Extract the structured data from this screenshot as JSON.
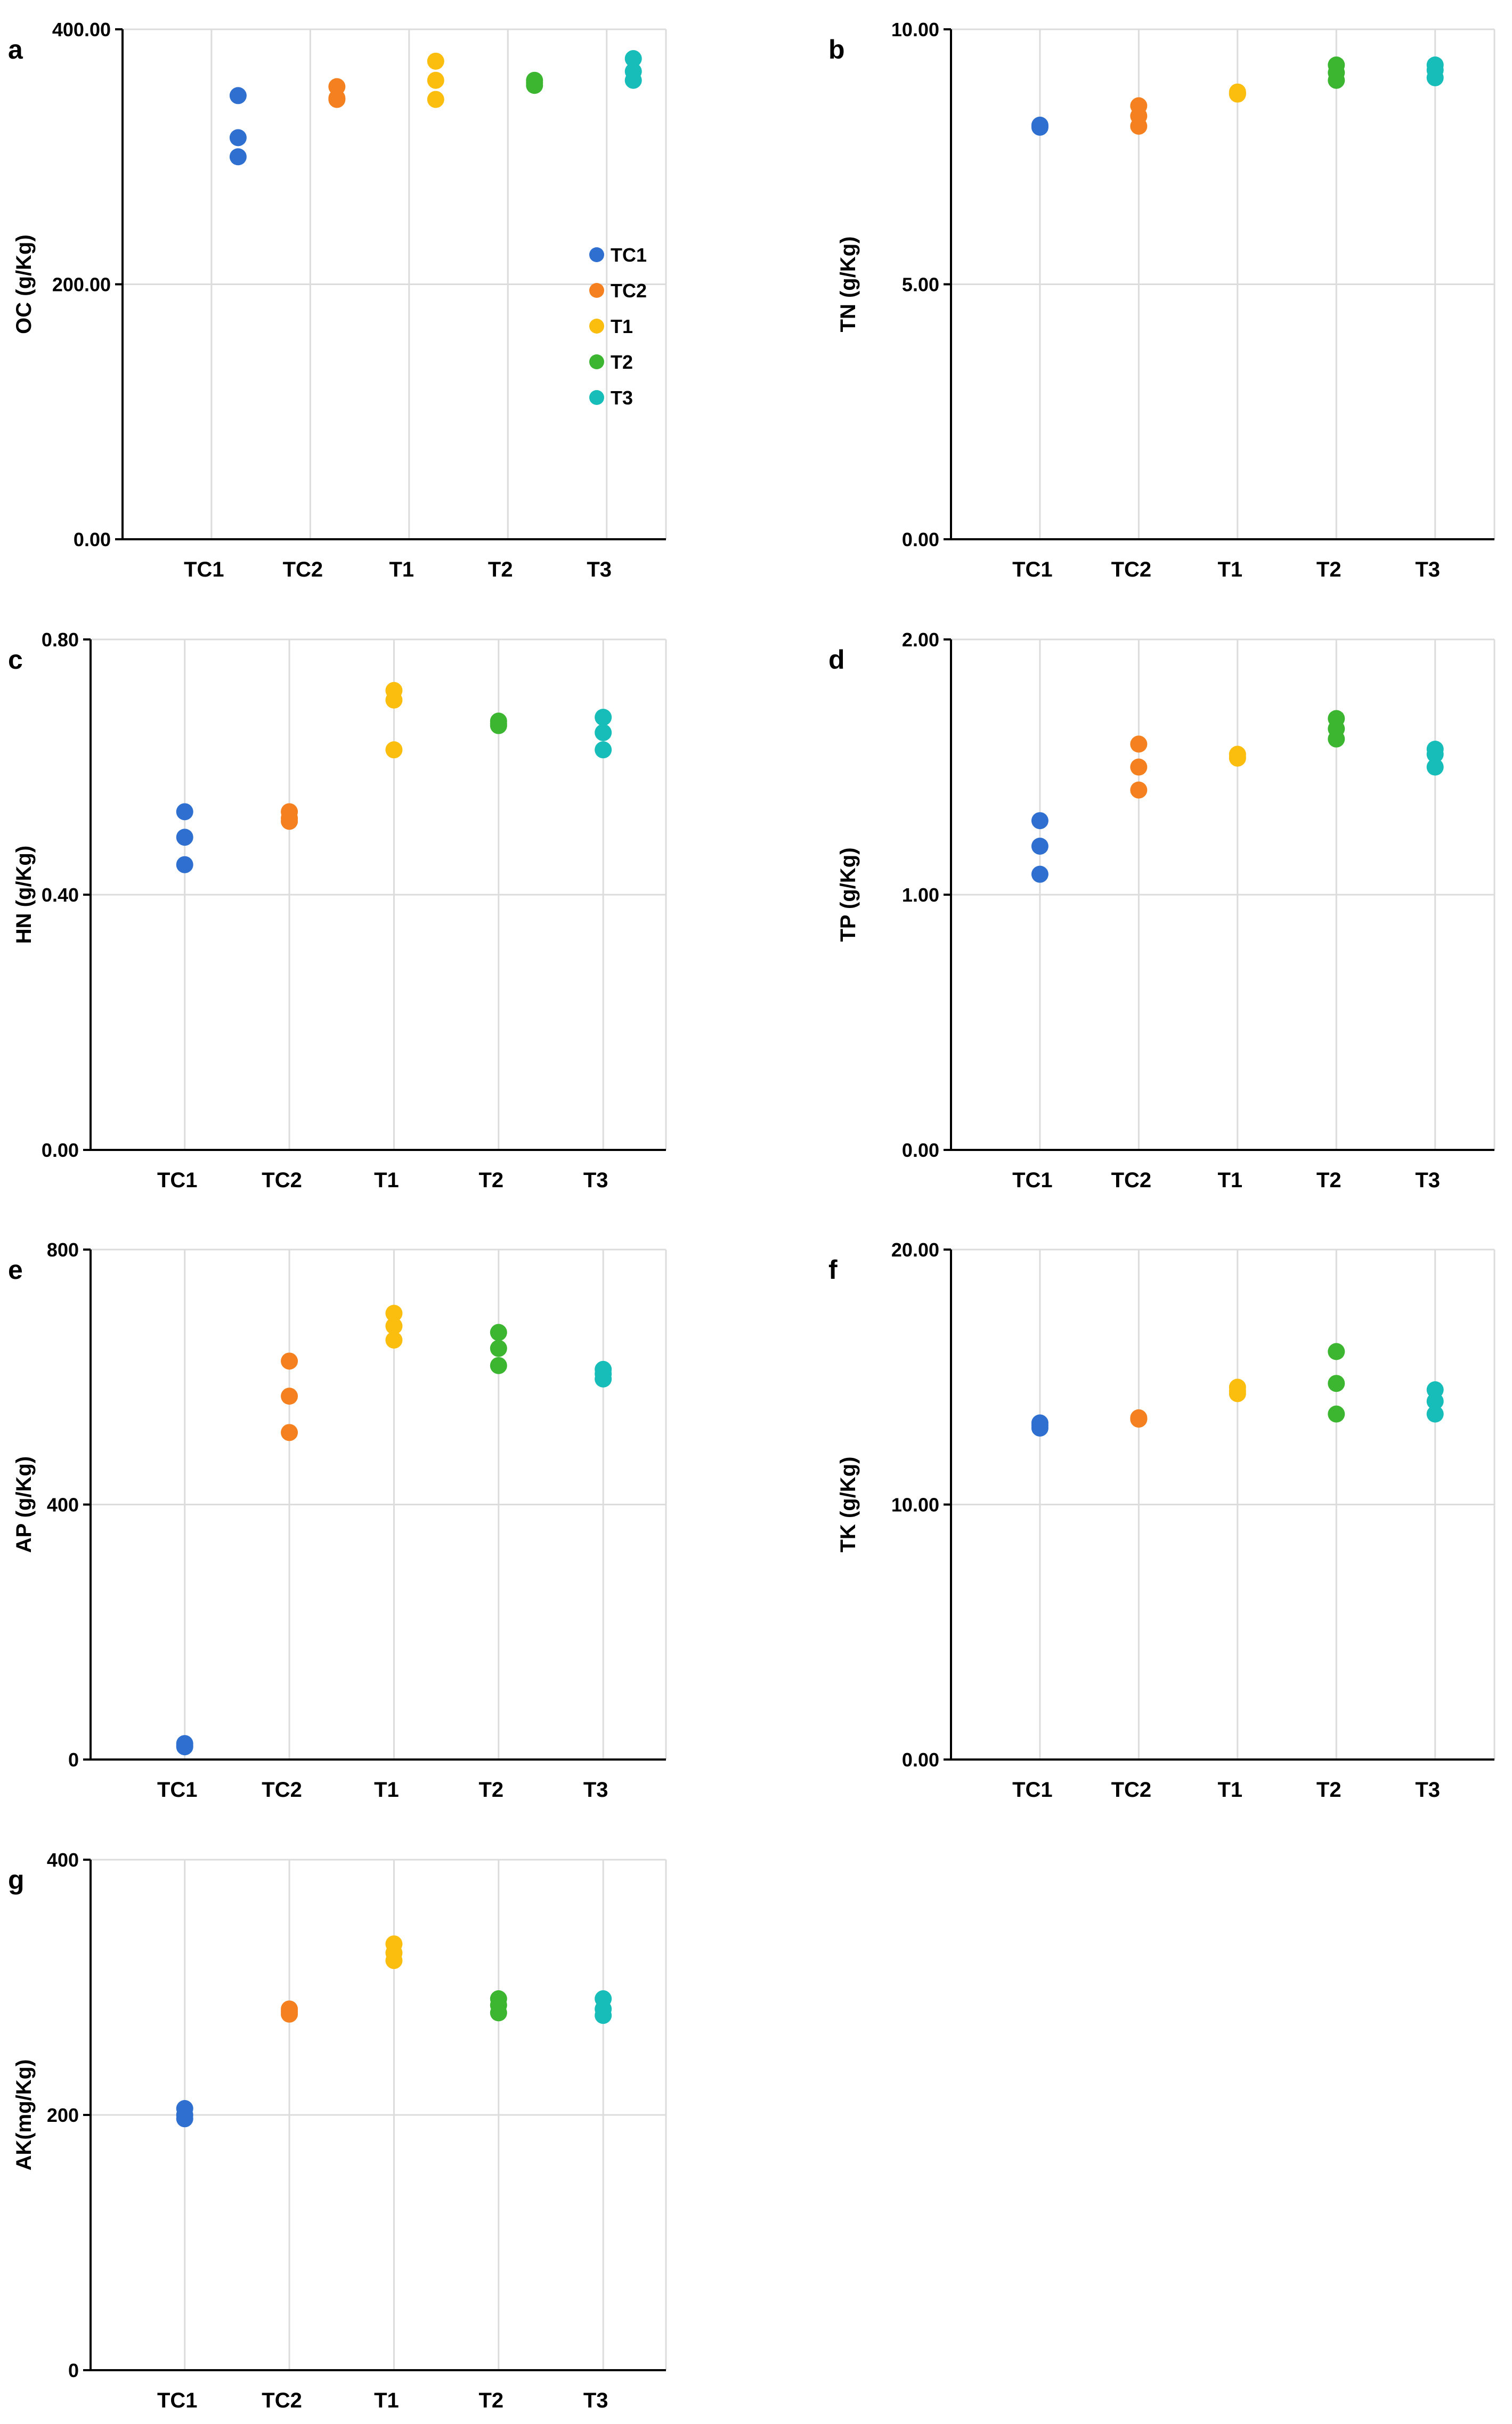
{
  "categories": [
    "TC1",
    "TC2",
    "T1",
    "T2",
    "T3"
  ],
  "colors": {
    "TC1": "#2e6fcf",
    "TC2": "#f4801f",
    "T1": "#fbbd0e",
    "T2": "#3cb531",
    "T3": "#17bdb8",
    "grid": "#dcdcdc",
    "axis": "#000000"
  },
  "legend": {
    "panel": "a",
    "placement": "right-middle",
    "entries": [
      "TC1",
      "TC2",
      "T1",
      "T2",
      "T3"
    ]
  },
  "chart_data": [
    {
      "type": "scatter",
      "panel": "a",
      "ylabel": "OC (g/Kg)",
      "ylim": [
        0,
        400
      ],
      "yticks": [
        "0.00",
        "200.00",
        "400.00"
      ],
      "grid": true,
      "series": [
        {
          "name": "TC1",
          "values": [
            348,
            315,
            300
          ]
        },
        {
          "name": "TC2",
          "values": [
            355,
            345,
            346
          ]
        },
        {
          "name": "T1",
          "values": [
            375,
            360,
            345
          ]
        },
        {
          "name": "T2",
          "values": [
            360,
            356,
            358
          ]
        },
        {
          "name": "T3",
          "values": [
            377,
            367,
            360
          ]
        }
      ]
    },
    {
      "type": "scatter",
      "panel": "b",
      "ylabel": "TN (g/Kg)",
      "ylim": [
        0,
        10
      ],
      "yticks": [
        "0.00",
        "5.00",
        "10.00"
      ],
      "grid": true,
      "series": [
        {
          "name": "TC1",
          "values": [
            8.1,
            8.08,
            8.12
          ]
        },
        {
          "name": "TC2",
          "values": [
            8.5,
            8.3,
            8.1
          ]
        },
        {
          "name": "T1",
          "values": [
            8.75,
            8.73,
            8.77
          ]
        },
        {
          "name": "T2",
          "values": [
            9.3,
            9.15,
            9.0
          ]
        },
        {
          "name": "T3",
          "values": [
            9.3,
            9.2,
            9.05
          ]
        }
      ]
    },
    {
      "type": "scatter",
      "panel": "c",
      "ylabel": "HN (g/Kg)",
      "ylim": [
        0,
        0.8
      ],
      "yticks": [
        "0.00",
        "0.40",
        "0.80"
      ],
      "grid": true,
      "series": [
        {
          "name": "TC1",
          "values": [
            0.53,
            0.49,
            0.447
          ]
        },
        {
          "name": "TC2",
          "values": [
            0.53,
            0.52,
            0.515
          ]
        },
        {
          "name": "T1",
          "values": [
            0.72,
            0.705,
            0.627
          ]
        },
        {
          "name": "T2",
          "values": [
            0.672,
            0.665,
            0.668
          ]
        },
        {
          "name": "T3",
          "values": [
            0.678,
            0.654,
            0.627
          ]
        }
      ]
    },
    {
      "type": "scatter",
      "panel": "d",
      "ylabel": "TP (g/Kg)",
      "ylim": [
        0,
        2
      ],
      "yticks": [
        "0.00",
        "1.00",
        "2.00"
      ],
      "grid": true,
      "series": [
        {
          "name": "TC1",
          "values": [
            1.29,
            1.19,
            1.08
          ]
        },
        {
          "name": "TC2",
          "values": [
            1.59,
            1.5,
            1.41
          ]
        },
        {
          "name": "T1",
          "values": [
            1.54,
            1.55,
            1.535
          ]
        },
        {
          "name": "T2",
          "values": [
            1.69,
            1.65,
            1.61
          ]
        },
        {
          "name": "T3",
          "values": [
            1.57,
            1.55,
            1.5
          ]
        }
      ]
    },
    {
      "type": "scatter",
      "panel": "e",
      "ylabel": "AP (g/Kg)",
      "ylim": [
        0,
        800
      ],
      "yticks": [
        "0",
        "400",
        "800"
      ],
      "grid": true,
      "series": [
        {
          "name": "TC1",
          "values": [
            25,
            20,
            22
          ]
        },
        {
          "name": "TC2",
          "values": [
            625,
            570,
            513
          ]
        },
        {
          "name": "T1",
          "values": [
            700,
            680,
            658
          ]
        },
        {
          "name": "T2",
          "values": [
            670,
            645,
            618
          ]
        },
        {
          "name": "T3",
          "values": [
            612,
            605,
            597
          ]
        }
      ]
    },
    {
      "type": "scatter",
      "panel": "f",
      "ylabel": "TK (g/Kg)",
      "ylim": [
        0,
        20
      ],
      "yticks": [
        "0.00",
        "10.00",
        "20.00"
      ],
      "grid": true,
      "series": [
        {
          "name": "TC1",
          "values": [
            13.2,
            13.1,
            13.0
          ]
        },
        {
          "name": "TC2",
          "values": [
            13.4,
            13.35,
            13.38
          ]
        },
        {
          "name": "T1",
          "values": [
            14.6,
            14.45,
            14.35
          ]
        },
        {
          "name": "T2",
          "values": [
            16.0,
            14.75,
            13.55
          ]
        },
        {
          "name": "T3",
          "values": [
            14.5,
            14.05,
            13.55
          ]
        }
      ]
    },
    {
      "type": "scatter",
      "panel": "g",
      "ylabel": "AK(mg/Kg)",
      "ylim": [
        0,
        400
      ],
      "yticks": [
        "0",
        "200",
        "400"
      ],
      "grid": true,
      "series": [
        {
          "name": "TC1",
          "values": [
            205,
            200,
            197
          ]
        },
        {
          "name": "TC2",
          "values": [
            283,
            281,
            279
          ]
        },
        {
          "name": "T1",
          "values": [
            334,
            327,
            321
          ]
        },
        {
          "name": "T2",
          "values": [
            291,
            286,
            280
          ]
        },
        {
          "name": "T3",
          "values": [
            291,
            283,
            278
          ]
        }
      ]
    }
  ]
}
